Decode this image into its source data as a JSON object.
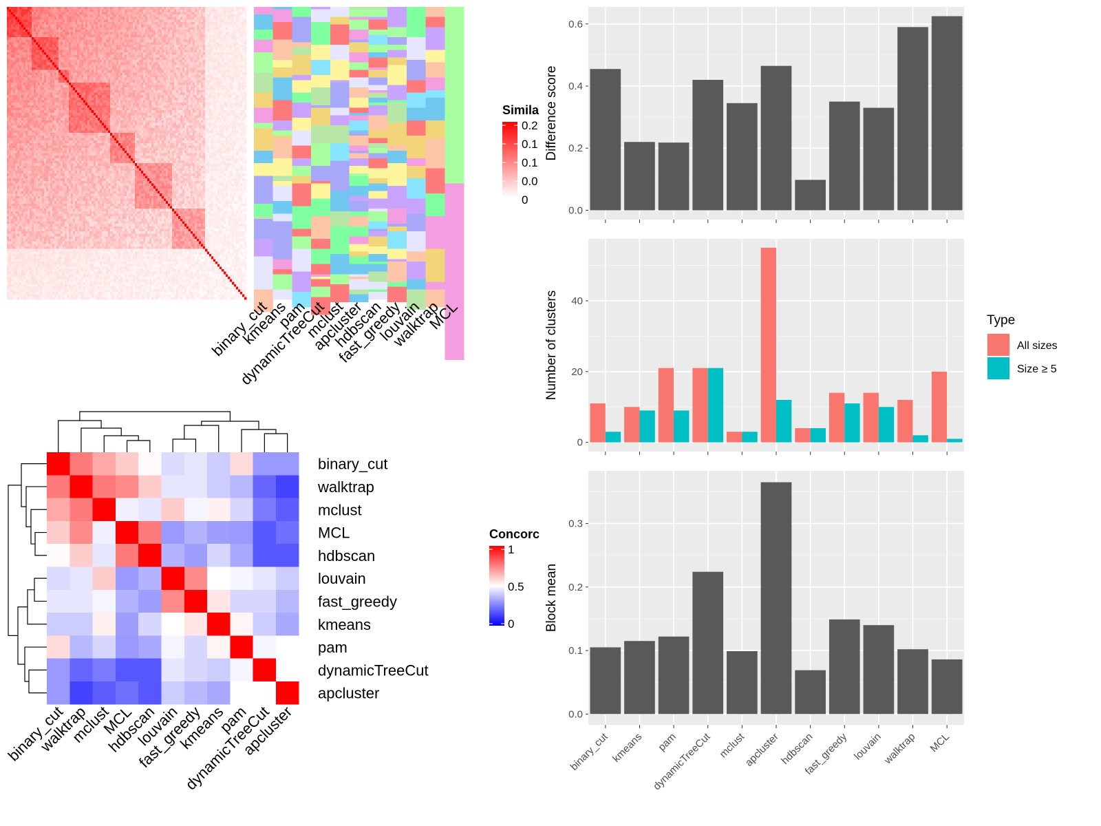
{
  "chart_data": [
    {
      "type": "heatmap",
      "panel": "similarity",
      "legend": {
        "title": "Simila",
        "ticks": [
          "0.2",
          "0.1",
          "0.1",
          "0.0",
          "0"
        ]
      },
      "colors": {
        "low": "#ffffff",
        "high": "#ff0000"
      }
    },
    {
      "type": "heatmap",
      "panel": "cluster_assignments",
      "columns": [
        "binary_cut",
        "kmeans",
        "pam",
        "dynamicTreeCut",
        "mclust",
        "apcluster",
        "hdbscan",
        "fast_greedy",
        "louvain",
        "walktrap",
        "MCL"
      ],
      "palette": [
        "#7fff9f",
        "#f29ee0",
        "#70c8f0",
        "#fff59c",
        "#c9a4ff",
        "#ffc5a8",
        "#b8e6a6",
        "#ff7b7b",
        "#88e4ff",
        "#e6e6ff",
        "#a8a8f8",
        "#f2d57b",
        "#a8ffa0"
      ]
    },
    {
      "type": "heatmap",
      "panel": "concordance",
      "rows": [
        "binary_cut",
        "walktrap",
        "mclust",
        "MCL",
        "hdbscan",
        "louvain",
        "fast_greedy",
        "kmeans",
        "pam",
        "dynamicTreeCut",
        "apcluster"
      ],
      "columns": [
        "binary_cut",
        "walktrap",
        "mclust",
        "MCL",
        "hdbscan",
        "louvain",
        "fast_greedy",
        "kmeans",
        "pam",
        "dynamicTreeCut",
        "apcluster"
      ],
      "values": [
        [
          1.0,
          0.76,
          0.67,
          0.6,
          0.51,
          0.43,
          0.45,
          0.4,
          0.57,
          0.3,
          0.3
        ],
        [
          0.76,
          1.0,
          0.76,
          0.73,
          0.6,
          0.45,
          0.45,
          0.4,
          0.36,
          0.2,
          0.13
        ],
        [
          0.67,
          0.76,
          1.0,
          0.47,
          0.45,
          0.6,
          0.48,
          0.53,
          0.42,
          0.24,
          0.18
        ],
        [
          0.6,
          0.73,
          0.47,
          1.0,
          0.76,
          0.3,
          0.35,
          0.31,
          0.3,
          0.17,
          0.22
        ],
        [
          0.51,
          0.6,
          0.45,
          0.76,
          1.0,
          0.35,
          0.31,
          0.42,
          0.33,
          0.17,
          0.17
        ],
        [
          0.43,
          0.45,
          0.6,
          0.3,
          0.35,
          1.0,
          0.73,
          0.5,
          0.48,
          0.45,
          0.4
        ],
        [
          0.45,
          0.45,
          0.48,
          0.35,
          0.31,
          0.73,
          1.0,
          0.55,
          0.42,
          0.42,
          0.36
        ],
        [
          0.4,
          0.4,
          0.53,
          0.31,
          0.42,
          0.5,
          0.55,
          1.0,
          0.52,
          0.4,
          0.33
        ],
        [
          0.57,
          0.36,
          0.42,
          0.3,
          0.33,
          0.48,
          0.42,
          0.52,
          1.0,
          0.48,
          0.5
        ],
        [
          0.3,
          0.2,
          0.24,
          0.17,
          0.17,
          0.45,
          0.42,
          0.4,
          0.48,
          1.0,
          0.5
        ],
        [
          0.3,
          0.13,
          0.18,
          0.22,
          0.17,
          0.4,
          0.36,
          0.33,
          0.5,
          0.5,
          1.0
        ]
      ],
      "legend": {
        "title": "Concorc",
        "ticks": [
          "1",
          "0.5",
          "0"
        ]
      },
      "colors": {
        "low": "#0000ff",
        "mid": "#ffffff",
        "high": "#ff0000"
      }
    },
    {
      "type": "bar",
      "panel": "difference_score",
      "categories": [
        "binary_cut",
        "kmeans",
        "pam",
        "dynamicTreeCut",
        "mclust",
        "apcluster",
        "hdbscan",
        "fast_greedy",
        "louvain",
        "walktrap",
        "MCL"
      ],
      "values": [
        0.455,
        0.22,
        0.218,
        0.42,
        0.345,
        0.465,
        0.098,
        0.35,
        0.33,
        0.59,
        0.625
      ],
      "ylabel": "Difference score",
      "ylim": [
        -0.03,
        0.655
      ],
      "yticks": [
        "0.0",
        "0.2",
        "0.4",
        "0.6"
      ],
      "grid": true,
      "colors": {
        "bar": "#595959"
      }
    },
    {
      "type": "bar",
      "panel": "number_of_clusters",
      "categories": [
        "binary_cut",
        "kmeans",
        "pam",
        "dynamicTreeCut",
        "mclust",
        "apcluster",
        "hdbscan",
        "fast_greedy",
        "louvain",
        "walktrap",
        "MCL"
      ],
      "series": [
        {
          "name": "All sizes",
          "values": [
            11,
            10,
            21,
            21,
            3,
            55,
            4,
            14,
            14,
            12,
            20
          ],
          "color": "#f8766d"
        },
        {
          "name": "Size ≥ 5",
          "values": [
            3,
            9,
            9,
            21,
            3,
            12,
            4,
            11,
            10,
            2,
            1
          ],
          "color": "#00bfc4"
        }
      ],
      "ylabel": "Number of clusters",
      "ylim": [
        -2.6,
        57.5
      ],
      "yticks": [
        "0",
        "20",
        "40"
      ],
      "legend": {
        "title": "Type",
        "placement": "right"
      },
      "grid": true
    },
    {
      "type": "bar",
      "panel": "block_mean",
      "categories": [
        "binary_cut",
        "kmeans",
        "pam",
        "dynamicTreeCut",
        "mclust",
        "apcluster",
        "hdbscan",
        "fast_greedy",
        "louvain",
        "walktrap",
        "MCL"
      ],
      "values": [
        0.105,
        0.115,
        0.122,
        0.224,
        0.099,
        0.365,
        0.069,
        0.149,
        0.14,
        0.102,
        0.086
      ],
      "ylabel": "Block mean",
      "ylim": [
        -0.017,
        0.383
      ],
      "yticks": [
        "0.0",
        "0.1",
        "0.2",
        "0.3"
      ],
      "grid": true,
      "colors": {
        "bar": "#595959"
      }
    }
  ]
}
